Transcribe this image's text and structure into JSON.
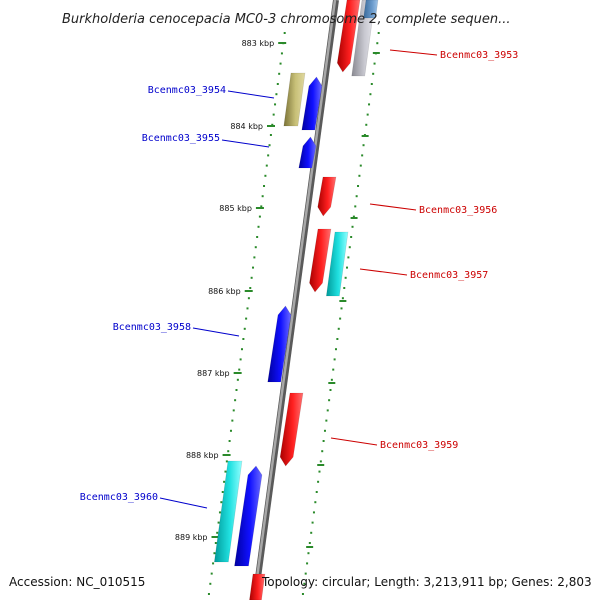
{
  "title": "Burkholderia cenocepacia MC0-3 chromosome 2, complete sequen...",
  "footer": {
    "accession": "Accession: NC_010515",
    "topology": "Topology: circular; Length: 3,213,911 bp; Genes: 2,803"
  },
  "ticks": [
    {
      "label": "883 kbp"
    },
    {
      "label": "884 kbp"
    },
    {
      "label": "885 kbp"
    },
    {
      "label": "886 kbp"
    },
    {
      "label": "887 kbp"
    },
    {
      "label": "888 kbp"
    },
    {
      "label": "889 kbp"
    }
  ],
  "gene_labels": [
    {
      "text": "Bcenmc03_3953",
      "color": "#cc0000"
    },
    {
      "text": "Bcenmc03_3954",
      "color": "#0000cc"
    },
    {
      "text": "Bcenmc03_3955",
      "color": "#0000cc"
    },
    {
      "text": "Bcenmc03_3956",
      "color": "#cc0000"
    },
    {
      "text": "Bcenmc03_3957",
      "color": "#cc0000"
    },
    {
      "text": "Bcenmc03_3958",
      "color": "#0000cc"
    },
    {
      "text": "Bcenmc03_3959",
      "color": "#cc0000"
    },
    {
      "text": "Bcenmc03_3960",
      "color": "#0000cc"
    }
  ],
  "colors": {
    "forward_gene": "#ee0000",
    "reverse_gene": "#0000ee",
    "rna_gene": "#00c8c8",
    "pseudo_gene": "#b8b060",
    "other_gene": "#b0b0b8",
    "backbone": "#808080",
    "tick_dots": "#2a8a2a"
  }
}
